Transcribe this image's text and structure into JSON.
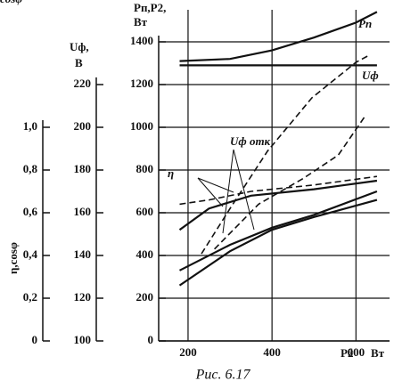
{
  "chart_data": {
    "type": "line",
    "caption": "Рис. 6.17",
    "xlabel": "P2",
    "xunit": "Вт",
    "ylabel": "Pп,P2,",
    "yunit": "Вт",
    "y2label": "Uф,",
    "y2unit": "В",
    "y3label": "η,cosφ",
    "xlim": [
      130,
      680
    ],
    "xticks": [
      200,
      400,
      600
    ],
    "ylim": [
      0,
      1550
    ],
    "yticks": [
      0,
      200,
      400,
      600,
      800,
      1000,
      1200,
      1400
    ],
    "y2lim": [
      100,
      255
    ],
    "y2ticks": [
      100,
      120,
      140,
      160,
      180,
      200,
      220
    ],
    "y3lim": [
      0,
      1.55
    ],
    "y3ticks": [
      0,
      {
        "value": 0.2,
        "label": "0,2"
      },
      {
        "value": 0.4,
        "label": "0,4"
      },
      {
        "value": 0.6,
        "label": "0,6"
      },
      {
        "value": 0.8,
        "label": "0,8"
      },
      {
        "value": 1.0,
        "label": "1,0"
      }
    ],
    "grid": true,
    "color": "#111111",
    "series": [
      {
        "name": "Pп",
        "x": [
          180,
          300,
          400,
          500,
          600,
          650
        ],
        "values": [
          1310,
          1320,
          1360,
          1420,
          1490,
          1540
        ]
      },
      {
        "name": "Uф",
        "axis": "y2",
        "x": [
          180,
          650
        ],
        "values": [
          229,
          229
        ]
      },
      {
        "x": [
          232,
          300,
          389,
          495,
          600,
          632
        ],
        "values": [
          408,
          620,
          888,
          1138,
          1304,
          1338
        ],
        "dash": true
      },
      {
        "name": "Uф отк",
        "axis": "y2",
        "x": [
          263,
          368,
          474,
          558,
          621
        ],
        "values": [
          143,
          164,
          176,
          187,
          205
        ],
        "dash": true
      },
      {
        "name": "η",
        "axis": "y3",
        "x": [
          180,
          300,
          400,
          500,
          650
        ],
        "values": [
          0.26,
          0.42,
          0.52,
          0.58,
          0.66
        ]
      },
      {
        "axis": "y3",
        "x": [
          180,
          300,
          400,
          500,
          650
        ],
        "values": [
          0.33,
          0.45,
          0.53,
          0.59,
          0.7
        ]
      },
      {
        "name": "cosφ",
        "axis": "y3",
        "x": [
          180,
          250,
          350,
          500,
          650
        ],
        "values": [
          0.52,
          0.62,
          0.68,
          0.71,
          0.75
        ]
      },
      {
        "axis": "y3",
        "x": [
          180,
          250,
          350,
          500,
          650
        ],
        "values": [
          0.64,
          0.66,
          0.7,
          0.73,
          0.77
        ],
        "dash": true
      }
    ]
  }
}
